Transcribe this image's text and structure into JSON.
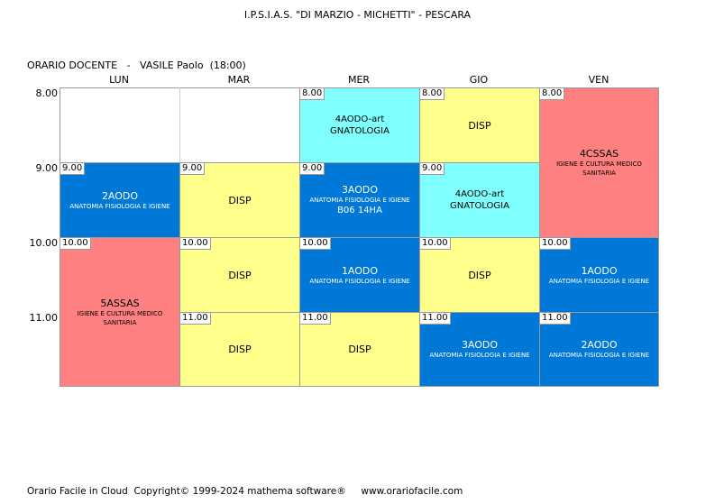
{
  "header": {
    "school": "I.P.S.I.A.S. \"DI MARZIO - MICHETTI\" - PESCARA",
    "teacher_line": "ORARIO DOCENTE   -   VASILE Paolo  (18:00)"
  },
  "days": [
    "LUN",
    "MAR",
    "MER",
    "GIO",
    "VEN"
  ],
  "hours": [
    "8.00",
    "9.00",
    "10.00",
    "11.00"
  ],
  "cells": {
    "mer_8": {
      "time": "8.00",
      "cls": "4AODO-art",
      "subj": "GNATOLOGIA"
    },
    "gio_8": {
      "time": "8.00",
      "cls": "DISP"
    },
    "ven_8": {
      "time": "8.00",
      "cls": "4CSSAS",
      "subj": "IGIENE E CULTURA MEDICO SANITARIA"
    },
    "lun_9": {
      "time": "9.00",
      "cls": "2AODO",
      "subj": "ANATOMIA FISIOLOGIA E IGIENE"
    },
    "mar_9": {
      "time": "9.00",
      "cls": "DISP"
    },
    "mer_9": {
      "time": "9.00",
      "cls": "3AODO",
      "subj": "ANATOMIA FISIOLOGIA E IGIENE",
      "room": "B06 14HA"
    },
    "gio_9": {
      "time": "9.00",
      "cls": "4AODO-art",
      "subj": "GNATOLOGIA"
    },
    "lun_10": {
      "time": "10.00",
      "cls": "5ASSAS",
      "subj": "IGIENE E CULTURA MEDICO SANITARIA"
    },
    "mar_10": {
      "time": "10.00",
      "cls": "DISP"
    },
    "mer_10": {
      "time": "10.00",
      "cls": "1AODO",
      "subj": "ANATOMIA FISIOLOGIA E IGIENE"
    },
    "gio_10": {
      "time": "10.00",
      "cls": "DISP"
    },
    "ven_10": {
      "time": "10.00",
      "cls": "1AODO",
      "subj": "ANATOMIA FISIOLOGIA E IGIENE"
    },
    "mar_11": {
      "time": "11.00",
      "cls": "DISP"
    },
    "mer_11": {
      "time": "11.00",
      "cls": "DISP"
    },
    "gio_11": {
      "time": "11.00",
      "cls": "3AODO",
      "subj": "ANATOMIA FISIOLOGIA E IGIENE"
    },
    "ven_11": {
      "time": "11.00",
      "cls": "2AODO",
      "subj": "ANATOMIA FISIOLOGIA E IGIENE"
    }
  },
  "colors": {
    "disp": "#ffff8c",
    "gnatologia": "#80ffff",
    "anatomia": "#0078d7",
    "igiene_cultura": "#ff8080"
  },
  "footer": "Orario Facile in Cloud  Copyright© 1999-2024 mathema software®     www.orariofacile.com"
}
